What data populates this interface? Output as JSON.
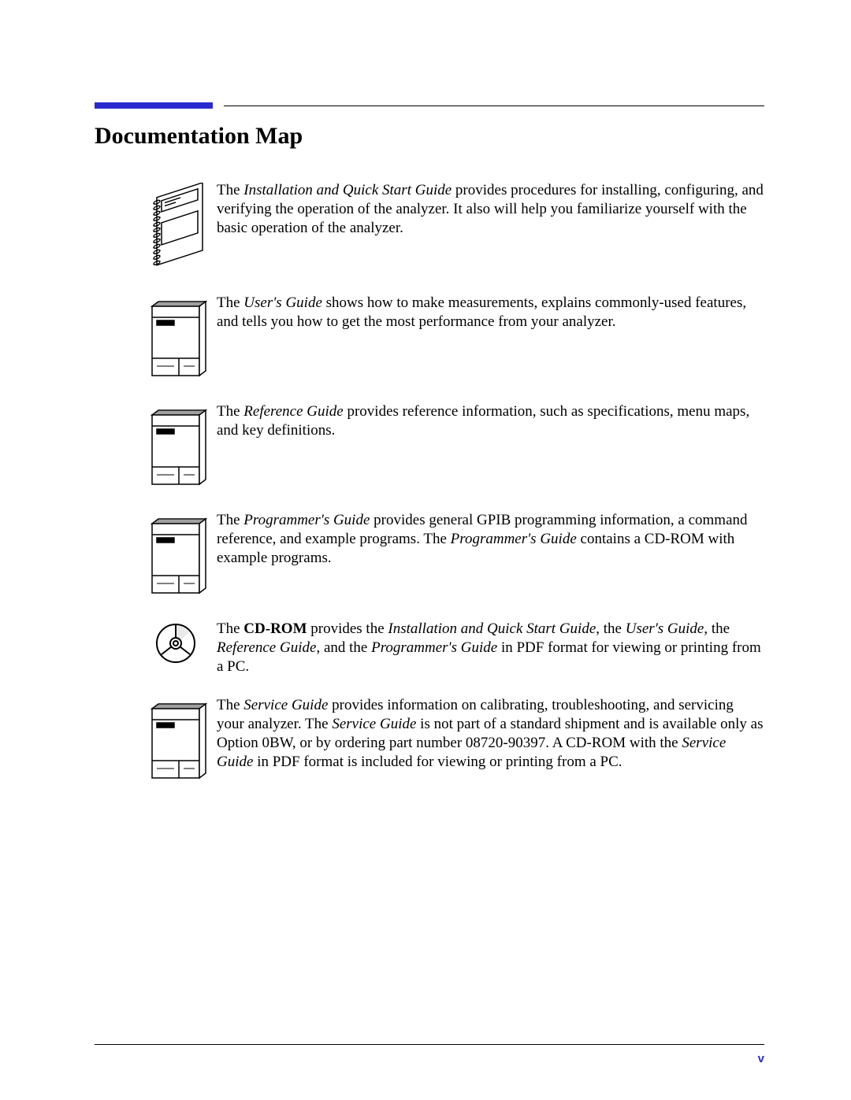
{
  "title": "Documentation Map",
  "accent_color": "#2a2acf",
  "page_number": "v",
  "entries": [
    {
      "icon": "spiral-book",
      "html": "The <em>Installation and Quick Start Guide</em> provides procedures for installing, configuring, and verifying the operation of the analyzer. It also will help you familiarize yourself with the basic operation of the analyzer."
    },
    {
      "icon": "box-book",
      "html": "The <em>User's Guide</em> shows how to make measurements, explains commonly-used features, and tells you how to get the most performance from your analyzer."
    },
    {
      "icon": "box-book",
      "html": "The <em>Reference Guide</em> provides reference information, such as specifications, menu maps, and key definitions."
    },
    {
      "icon": "box-book",
      "html": "The <em>Programmer's Guide</em> provides general GPIB programming information, a command reference, and example programs. The <em>Programmer's Guide</em> contains a CD-ROM with example programs."
    },
    {
      "icon": "cd",
      "html": "The <strong>CD-ROM</strong> provides the <em>Installation and Quick Start Guide</em>, the <em>User's Guide</em>, the <em>Reference Guide</em>, and the <em>Programmer's Guide</em> in PDF format for viewing or printing from a PC."
    },
    {
      "icon": "box-book",
      "html": "The <em>Service Guide</em> provides information on calibrating, troubleshooting, and servicing your analyzer. The <em>Service Guide</em> is not part of a standard shipment and is available only as Option 0BW, or by ordering part number 08720-90397. A CD-ROM with the <em>Service Guide</em> in PDF format is included for viewing or printing from a PC."
    }
  ]
}
